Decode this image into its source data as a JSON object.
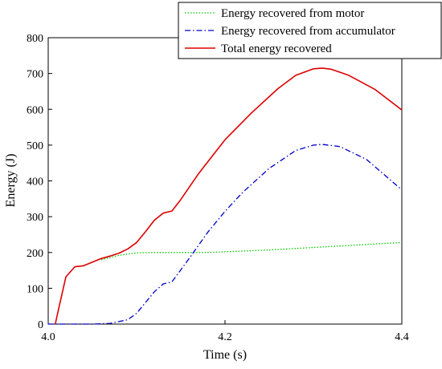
{
  "chart_data": {
    "type": "line",
    "xlabel": "Time (s)",
    "ylabel": "Energy (J)",
    "xlim": [
      4.0,
      4.4
    ],
    "ylim": [
      0,
      800
    ],
    "xticks": [
      4.0,
      4.2,
      4.4
    ],
    "xtick_labels": [
      "4.0",
      "4.2",
      "4.4"
    ],
    "yticks": [
      0,
      100,
      200,
      300,
      400,
      500,
      600,
      700,
      800
    ],
    "ytick_labels": [
      "0",
      "100",
      "200",
      "300",
      "400",
      "500",
      "600",
      "700",
      "800"
    ],
    "grid": false,
    "legend_position": "top-right",
    "series": [
      {
        "name": "Energy recovered from motor",
        "color": "#00cc00",
        "style": "dotted",
        "x": [
          4.06,
          4.08,
          4.1,
          4.12,
          4.15,
          4.18,
          4.2,
          4.25,
          4.3,
          4.35,
          4.4
        ],
        "y": [
          180,
          192,
          199,
          200,
          200,
          200,
          202,
          207,
          214,
          221,
          228
        ]
      },
      {
        "name": "Energy recovered from accumulator",
        "color": "#0000cc",
        "style": "dashdot",
        "x": [
          4.0,
          4.05,
          4.07,
          4.09,
          4.1,
          4.12,
          4.13,
          4.14,
          4.16,
          4.18,
          4.2,
          4.22,
          4.25,
          4.28,
          4.3,
          4.31,
          4.33,
          4.36,
          4.4
        ],
        "y": [
          0,
          0,
          2,
          12,
          30,
          90,
          112,
          118,
          185,
          255,
          315,
          368,
          435,
          485,
          500,
          502,
          496,
          460,
          375
        ]
      },
      {
        "name": "Total energy recovered",
        "color": "#dd0000",
        "style": "solid",
        "x": [
          4.008,
          4.012,
          4.02,
          4.03,
          4.04,
          4.05,
          4.06,
          4.07,
          4.08,
          4.09,
          4.1,
          4.11,
          4.12,
          4.13,
          4.14,
          4.15,
          4.17,
          4.2,
          4.23,
          4.26,
          4.28,
          4.3,
          4.31,
          4.32,
          4.34,
          4.37,
          4.4
        ],
        "y": [
          0,
          45,
          132,
          160,
          163,
          173,
          183,
          190,
          198,
          210,
          228,
          258,
          290,
          310,
          316,
          348,
          420,
          515,
          590,
          658,
          695,
          713,
          715,
          712,
          695,
          655,
          598
        ]
      }
    ]
  }
}
